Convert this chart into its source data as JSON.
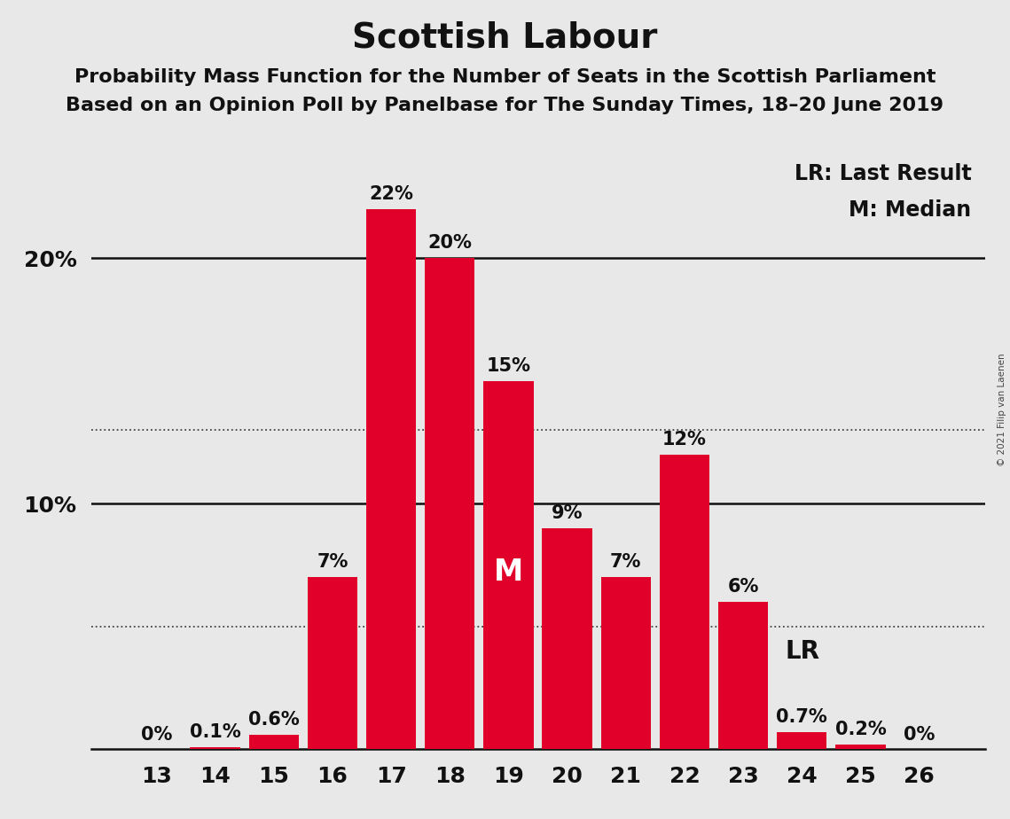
{
  "title": "Scottish Labour",
  "subtitle1": "Probability Mass Function for the Number of Seats in the Scottish Parliament",
  "subtitle2": "Based on an Opinion Poll by Panelbase for The Sunday Times, 18–20 June 2019",
  "copyright": "© 2021 Filip van Laenen",
  "categories": [
    13,
    14,
    15,
    16,
    17,
    18,
    19,
    20,
    21,
    22,
    23,
    24,
    25,
    26
  ],
  "values": [
    0.0,
    0.1,
    0.6,
    7.0,
    22.0,
    20.0,
    15.0,
    9.0,
    7.0,
    12.0,
    6.0,
    0.7,
    0.2,
    0.0
  ],
  "bar_color": "#E0002A",
  "background_color": "#E8E8E8",
  "median_bar": 19,
  "last_result_bar": 24,
  "legend_lr": "LR: Last Result",
  "legend_m": "M: Median",
  "dotted_line1": 13.0,
  "dotted_line2": 5.0,
  "ylim": [
    0,
    25
  ],
  "solid_lines": [
    10,
    20
  ],
  "title_fontsize": 28,
  "subtitle_fontsize": 16,
  "tick_fontsize": 18,
  "bar_label_fontsize": 15,
  "legend_fontsize": 17
}
